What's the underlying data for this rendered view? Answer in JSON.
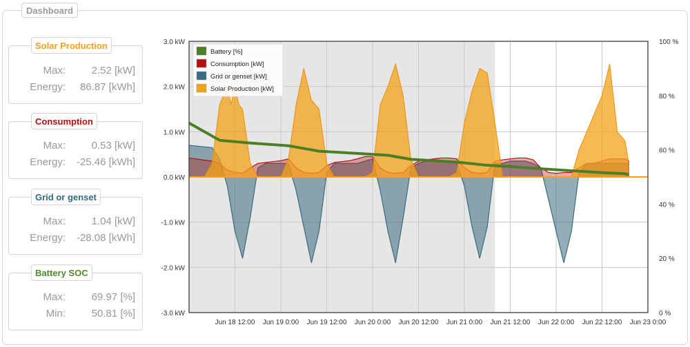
{
  "dashboard": {
    "title": "Dashboard"
  },
  "cards": [
    {
      "title": "Solar Production",
      "color": "#f4a21a",
      "rows": [
        {
          "label": "Max:",
          "value": "2.52 [kW]"
        },
        {
          "label": "Energy:",
          "value": "86.87 [kWh]"
        }
      ]
    },
    {
      "title": "Consumption",
      "color": "#b01010",
      "rows": [
        {
          "label": "Max:",
          "value": "0.53 [kW]"
        },
        {
          "label": "Energy:",
          "value": "-25.46 [kWh]"
        }
      ]
    },
    {
      "title": "Grid or genset",
      "color": "#2f6b80",
      "rows": [
        {
          "label": "Max:",
          "value": "1.04 [kW]"
        },
        {
          "label": "Energy:",
          "value": "-28.08 [kWh]"
        }
      ]
    },
    {
      "title": "Battery SOC",
      "color": "#4e8a2a",
      "rows": [
        {
          "label": "Max:",
          "value": "69.97 [%]"
        },
        {
          "label": "Min:",
          "value": "50.81 [%]"
        }
      ]
    }
  ],
  "chart_data": {
    "type": "area",
    "x_ticks": [
      "Jun 18 12:00",
      "Jun 19 0:00",
      "Jun 19 12:00",
      "Jun 20 0:00",
      "Jun 20 12:00",
      "Jun 21 0:00",
      "Jun 21 12:00",
      "Jun 22 0:00",
      "Jun 22 12:00",
      "Jun 23 0:00"
    ],
    "y_left_ticks": [
      "3.0 kW",
      "2.0 kW",
      "1.0 kW",
      "0.0 kW",
      "-1.0 kW",
      "-2.0 kW",
      "-3.0 kW"
    ],
    "y_right_ticks": [
      "100 %",
      "80 %",
      "60 %",
      "40 %",
      "20 %",
      "0 %"
    ],
    "ylim_left": [
      -3,
      3
    ],
    "ylim_right": [
      0,
      100
    ],
    "x_range_hours": [
      0,
      120
    ],
    "shaded_until_hours": 80,
    "grid": true,
    "legend_position": "top-left",
    "series": [
      {
        "name": "Battery [%]",
        "color": "#4a7f25",
        "axis": "right",
        "x": [
          0,
          8,
          16,
          26,
          34,
          40,
          46,
          52,
          58,
          64,
          70,
          78,
          84,
          92,
          100,
          108,
          114,
          115
        ],
        "y": [
          69.9,
          63.5,
          62.5,
          61.5,
          59.5,
          59.0,
          58.5,
          58.0,
          56.5,
          56.0,
          55.5,
          54.3,
          53.8,
          53.0,
          52.3,
          51.6,
          51.2,
          50.8
        ]
      },
      {
        "name": "Consumption [kW]",
        "color": "#b50f0f",
        "axis": "left",
        "x": [
          0,
          6,
          8,
          10,
          12,
          14,
          16,
          18,
          20,
          22,
          24,
          26,
          28,
          30,
          32,
          34,
          36,
          38,
          40,
          42,
          44,
          46,
          48,
          50,
          52,
          54,
          56,
          58,
          60,
          62,
          64,
          66,
          68,
          70,
          72,
          74,
          76,
          78,
          80,
          82,
          84,
          86,
          88,
          90,
          92,
          94,
          96,
          98,
          100,
          102,
          104,
          106,
          108,
          110,
          112,
          114,
          115
        ],
        "y": [
          0.42,
          0.35,
          0.3,
          0.15,
          0.1,
          0.08,
          0.2,
          0.3,
          0.32,
          0.34,
          0.36,
          0.4,
          0.2,
          0.1,
          0.08,
          0.1,
          0.25,
          0.32,
          0.34,
          0.36,
          0.4,
          0.45,
          0.45,
          0.2,
          0.1,
          0.08,
          0.1,
          0.25,
          0.35,
          0.38,
          0.4,
          0.42,
          0.42,
          0.4,
          0.2,
          0.1,
          0.08,
          0.1,
          0.35,
          0.38,
          0.4,
          0.42,
          0.42,
          0.38,
          0.2,
          0.1,
          0.08,
          0.1,
          0.1,
          0.2,
          0.3,
          0.3,
          0.35,
          0.4,
          0.4,
          0.4,
          0.35
        ]
      },
      {
        "name": "Grid or genset [kW]",
        "color": "#3a6b7e",
        "axis": "left",
        "x": [
          0,
          6,
          8,
          10,
          12,
          14,
          16,
          18,
          20,
          22,
          24,
          26,
          28,
          30,
          32,
          34,
          36,
          38,
          40,
          42,
          44,
          46,
          48,
          50,
          52,
          54,
          56,
          58,
          60,
          62,
          64,
          66,
          68,
          70,
          72,
          74,
          76,
          78,
          80,
          82,
          84,
          86,
          88,
          90,
          92,
          94,
          96,
          98,
          100,
          102,
          104,
          106,
          108,
          110,
          112,
          114,
          115
        ],
        "y": [
          0.7,
          0.65,
          0.4,
          -0.2,
          -1.2,
          -1.8,
          -0.9,
          0.2,
          0.3,
          0.3,
          0.3,
          0.3,
          -0.3,
          -1.1,
          -1.9,
          -1.2,
          0.1,
          0.3,
          0.3,
          0.3,
          0.3,
          0.35,
          0.4,
          -0.3,
          -1.2,
          -1.9,
          -0.9,
          0.2,
          0.3,
          0.35,
          0.35,
          0.35,
          0.35,
          0.3,
          -0.2,
          -1.1,
          -1.8,
          -1.1,
          0.3,
          0.3,
          0.35,
          0.35,
          0.35,
          0.3,
          0.2,
          -0.5,
          -1.2,
          -1.9,
          -1.2,
          0.1,
          0.3,
          0.3,
          0.3,
          0.3,
          0.3,
          0.3,
          0.3
        ]
      },
      {
        "name": "Solar Production [kW]",
        "color": "#f4a21a",
        "axis": "left",
        "x": [
          0,
          4,
          6,
          8,
          10,
          11,
          12,
          13,
          14,
          16,
          18,
          20,
          22,
          24,
          26,
          28,
          30,
          32,
          34,
          36,
          38,
          40,
          42,
          44,
          46,
          48,
          50,
          52,
          54,
          56,
          58,
          60,
          62,
          64,
          66,
          68,
          70,
          72,
          74,
          76,
          78,
          80,
          82,
          84,
          86,
          88,
          90,
          92,
          94,
          96,
          98,
          100,
          102,
          104,
          106,
          108,
          110,
          112,
          114,
          115
        ],
        "y": [
          0,
          0,
          0.3,
          1.6,
          2.0,
          1.6,
          2.0,
          1.6,
          1.5,
          0.3,
          0,
          0,
          0,
          0,
          0.4,
          1.6,
          2.4,
          1.7,
          1.5,
          0.3,
          0,
          0,
          0,
          0,
          0,
          0.1,
          1.6,
          2.0,
          2.5,
          1.8,
          0.4,
          0,
          0,
          0,
          0,
          0,
          0.1,
          1.2,
          1.9,
          2.4,
          2.3,
          1.2,
          0,
          0,
          0,
          0,
          0,
          0,
          0,
          0,
          0,
          0,
          0.6,
          1.0,
          1.4,
          1.8,
          2.5,
          1.0,
          0.8,
          0.3
        ]
      }
    ]
  }
}
